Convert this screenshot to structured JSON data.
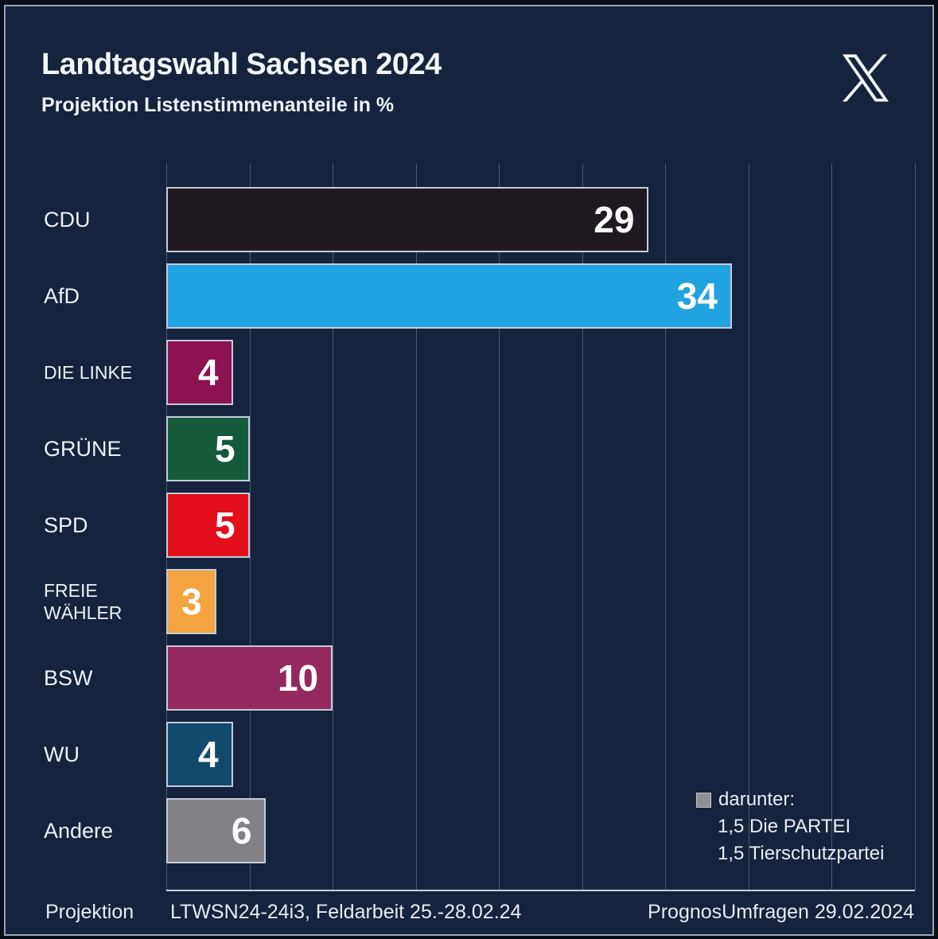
{
  "header": {
    "title": "Landtagswahl Sachsen 2024",
    "subtitle": "Projektion Listenstimmenanteile in %"
  },
  "logo": {
    "name": "x-logo"
  },
  "chart_data": {
    "type": "bar",
    "orientation": "horizontal",
    "title": "Landtagswahl Sachsen 2024",
    "subtitle": "Projektion Listenstimmenanteile in %",
    "value_unit": "%",
    "categories": [
      "CDU",
      "AfD",
      "DIE LINKE",
      "GRÜNE",
      "SPD",
      "FREIE WÄHLER",
      "BSW",
      "WU",
      "Andere"
    ],
    "values": [
      29,
      34,
      4,
      5,
      5,
      3,
      10,
      4,
      6
    ],
    "bar_colors": [
      "#211921",
      "#22a3e1",
      "#8c1252",
      "#155b3b",
      "#e3101c",
      "#f3a33f",
      "#93295e",
      "#114a6c",
      "#828286"
    ],
    "xlim": [
      0,
      45
    ],
    "grid_step": 5,
    "grid": "on",
    "legend_position": "bottom-right",
    "value_labels": "inside-right",
    "legend_note": {
      "swatch_color": "#8f9095",
      "title": "darunter:",
      "items": [
        "1,5 Die PARTEI",
        "1,5 Tierschutzpartei"
      ]
    }
  },
  "footer": {
    "left": "Projektion",
    "center": "LTWSN24-24i3, Feldarbeit 25.-28.02.24",
    "right": "PrognosUmfragen 29.02.2024"
  },
  "colors": {
    "background": "#16233d",
    "frame_border": "#99a3b4",
    "grid": "#4d5a72",
    "axis": "#c9ced8",
    "text": "#f2f4f7"
  }
}
